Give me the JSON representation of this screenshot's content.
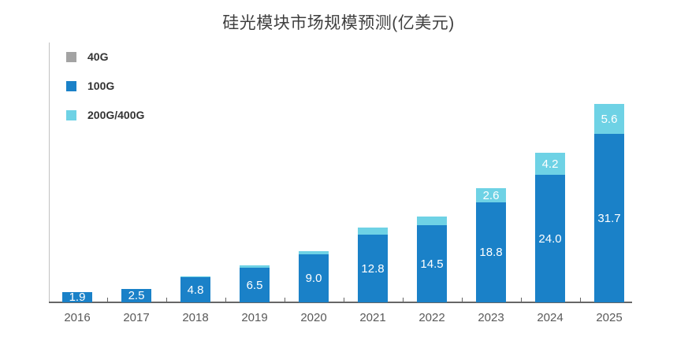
{
  "chart": {
    "title": "硅光模块市场规模预测(亿美元)"
  },
  "chart_data": {
    "type": "bar",
    "stacked": true,
    "title": "硅光模块市场规模预测(亿美元)",
    "xlabel": "",
    "ylabel": "",
    "categories": [
      "2016",
      "2017",
      "2018",
      "2019",
      "2020",
      "2021",
      "2022",
      "2023",
      "2024",
      "2025"
    ],
    "series": [
      {
        "name": "40G",
        "color": "#a3a3a3",
        "values": [
          0,
          0,
          0,
          0,
          0,
          0,
          0,
          0,
          0,
          0
        ],
        "labels": [
          "",
          "",
          "",
          "",
          "",
          "",
          "",
          "",
          "",
          ""
        ]
      },
      {
        "name": "100G",
        "color": "#1a81c8",
        "values": [
          1.9,
          2.5,
          4.8,
          6.5,
          9.0,
          12.8,
          14.5,
          18.8,
          24.0,
          31.7
        ],
        "labels": [
          "1.9",
          "2.5",
          "4.8",
          "6.5",
          "9.0",
          "12.8",
          "14.5",
          "18.8",
          "24.0",
          "31.7"
        ]
      },
      {
        "name": "200G/400G",
        "color": "#6ed2e5",
        "values": [
          0,
          0,
          0.2,
          0.4,
          0.6,
          1.3,
          1.6,
          2.6,
          4.2,
          5.6
        ],
        "labels": [
          "",
          "",
          "",
          "",
          "",
          "",
          "",
          "2.6",
          "4.2",
          "5.6"
        ]
      }
    ],
    "ylim": [
      0,
      40
    ],
    "grid": false,
    "legend_position": "top-left",
    "value_label_color": "#ffffff"
  }
}
